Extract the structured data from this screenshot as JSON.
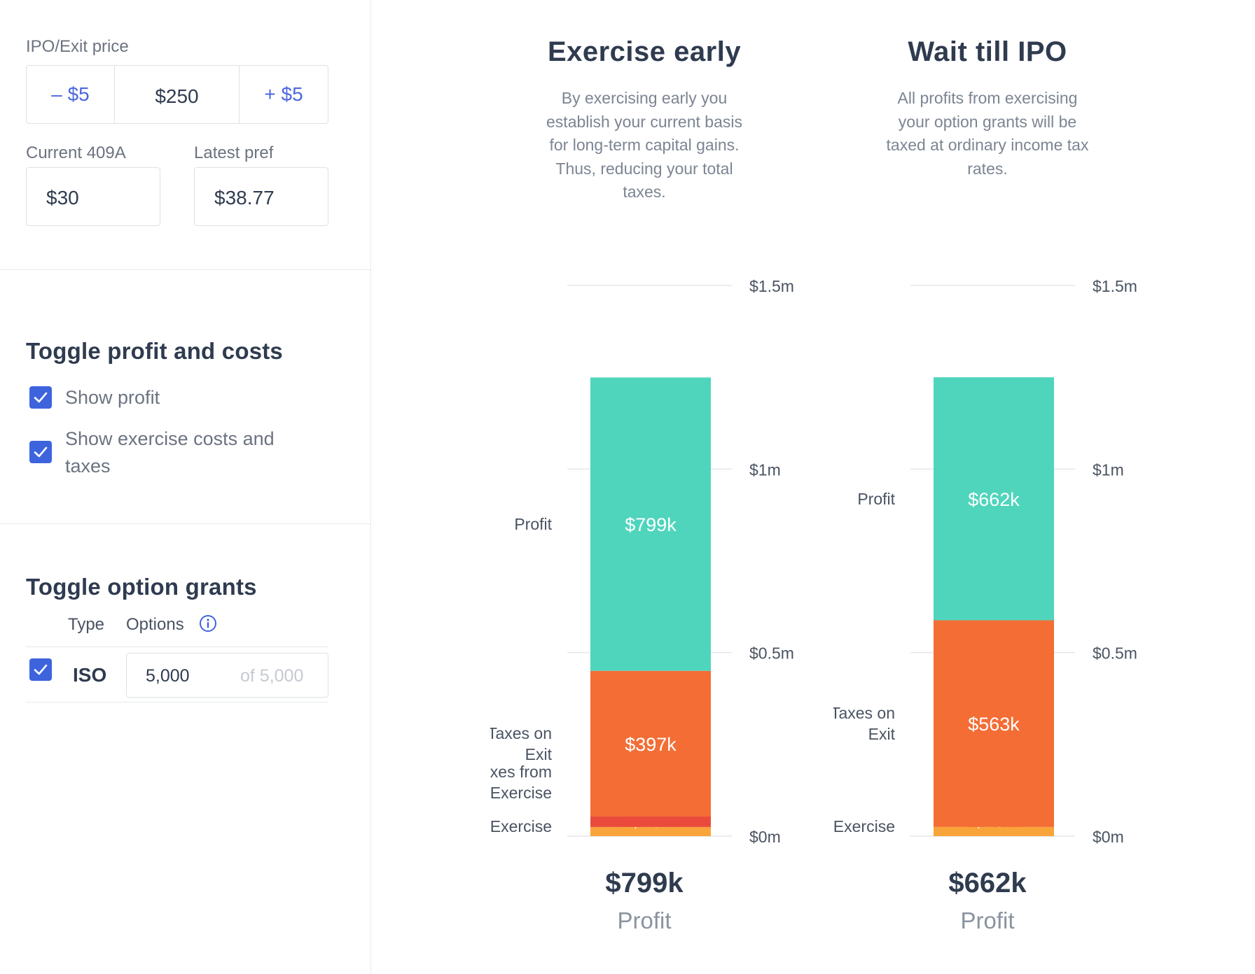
{
  "price_section": {
    "ipo_label": "IPO/Exit price",
    "minus_label": "– $5",
    "price_value": "$250",
    "plus_label": "+ $5",
    "current_409a_label": "Current 409A",
    "current_409a_value": "$30",
    "latest_pref_label": "Latest pref",
    "latest_pref_value": "$38.77"
  },
  "toggle_section": {
    "title": "Toggle profit and costs",
    "show_profit": "Show profit",
    "show_costs_line1": "Show exercise costs and",
    "show_costs_line2": "taxes"
  },
  "grants_section": {
    "title": "Toggle option grants",
    "type_header": "Type",
    "options_header": "Options",
    "info_icon": "info-icon",
    "row": {
      "type": "ISO",
      "value": "5,000",
      "of_total": "of 5,000"
    }
  },
  "colors": {
    "accent": "#3d63dd",
    "profit": "#4fd5bc",
    "taxes_exit": "#f36d35",
    "taxes_exercise": "#ea4a3c",
    "exercise": "#f9a43a"
  },
  "chart_data": [
    {
      "type": "bar",
      "title": "Exercise early",
      "description": "By exercising early you establish your current basis for long-term capital gains. Thus, reducing your total taxes.",
      "ylim": [
        0,
        1500000
      ],
      "yticks": [
        {
          "value": 0,
          "label": "$0m"
        },
        {
          "value": 500000,
          "label": "$0.5m"
        },
        {
          "value": 1000000,
          "label": "$1m"
        },
        {
          "value": 1500000,
          "label": "$1.5m"
        }
      ],
      "segments": [
        {
          "name": "Exercise",
          "label_lines": [
            "Exercise"
          ],
          "value": 25000,
          "value_label": "$25k",
          "color": "#f9a43a"
        },
        {
          "name": "Taxes from Exercise",
          "label_lines": [
            "Taxes from",
            "Exercise"
          ],
          "value": 28400,
          "value_label": "$28.4k",
          "color": "#ea4a3c"
        },
        {
          "name": "Taxes on Exit",
          "label_lines": [
            "Taxes on",
            "Exit"
          ],
          "value": 397000,
          "value_label": "$397k",
          "color": "#f36d35"
        },
        {
          "name": "Profit",
          "label_lines": [
            "Profit"
          ],
          "value": 799000,
          "value_label": "$799k",
          "color": "#4fd5bc"
        }
      ],
      "total_value": "$799k",
      "total_label": "Profit"
    },
    {
      "type": "bar",
      "title": "Wait till IPO",
      "description": "All profits from exercising your option grants will be taxed at ordinary income tax rates.",
      "ylim": [
        0,
        1500000
      ],
      "yticks": [
        {
          "value": 0,
          "label": "$0m"
        },
        {
          "value": 500000,
          "label": "$0.5m"
        },
        {
          "value": 1000000,
          "label": "$1m"
        },
        {
          "value": 1500000,
          "label": "$1.5m"
        }
      ],
      "segments": [
        {
          "name": "Exercise",
          "label_lines": [
            "Exercise"
          ],
          "value": 25000,
          "value_label": "$25k",
          "color": "#f9a43a"
        },
        {
          "name": "Taxes on Exit",
          "label_lines": [
            "Taxes on",
            "Exit"
          ],
          "value": 563000,
          "value_label": "$563k",
          "color": "#f36d35"
        },
        {
          "name": "Profit",
          "label_lines": [
            "Profit"
          ],
          "value": 662000,
          "value_label": "$662k",
          "color": "#4fd5bc"
        }
      ],
      "total_value": "$662k",
      "total_label": "Profit"
    }
  ]
}
